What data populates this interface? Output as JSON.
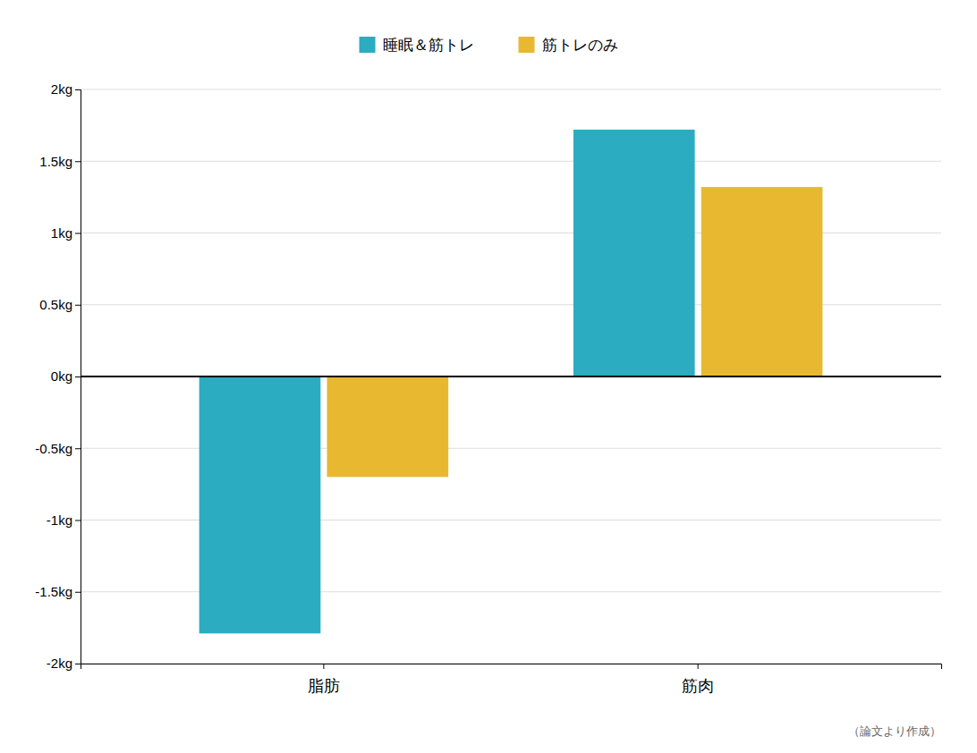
{
  "chart_data": {
    "type": "bar",
    "categories": [
      "脂肪",
      "筋肉"
    ],
    "series": [
      {
        "name": "睡眠＆筋トレ",
        "color": "#2BACC0",
        "values": [
          -1.79,
          1.72
        ]
      },
      {
        "name": "筋トレのみ",
        "color": "#E8B830",
        "values": [
          -0.7,
          1.32
        ]
      }
    ],
    "ylim": [
      -2.0,
      2.0
    ],
    "yticks": [
      {
        "value": -2.0,
        "label": "-2kg"
      },
      {
        "value": -1.5,
        "label": "-1.5kg"
      },
      {
        "value": -1.0,
        "label": "-1kg"
      },
      {
        "value": -0.5,
        "label": "-0.5kg"
      },
      {
        "value": 0.0,
        "label": "0kg"
      },
      {
        "value": 0.5,
        "label": "0.5kg"
      },
      {
        "value": 1.0,
        "label": "1kg"
      },
      {
        "value": 1.5,
        "label": "1.5kg"
      },
      {
        "value": 2.0,
        "label": "2kg"
      }
    ],
    "grid": true,
    "legend": "top",
    "annotations": [
      "（論文より作成）"
    ]
  }
}
